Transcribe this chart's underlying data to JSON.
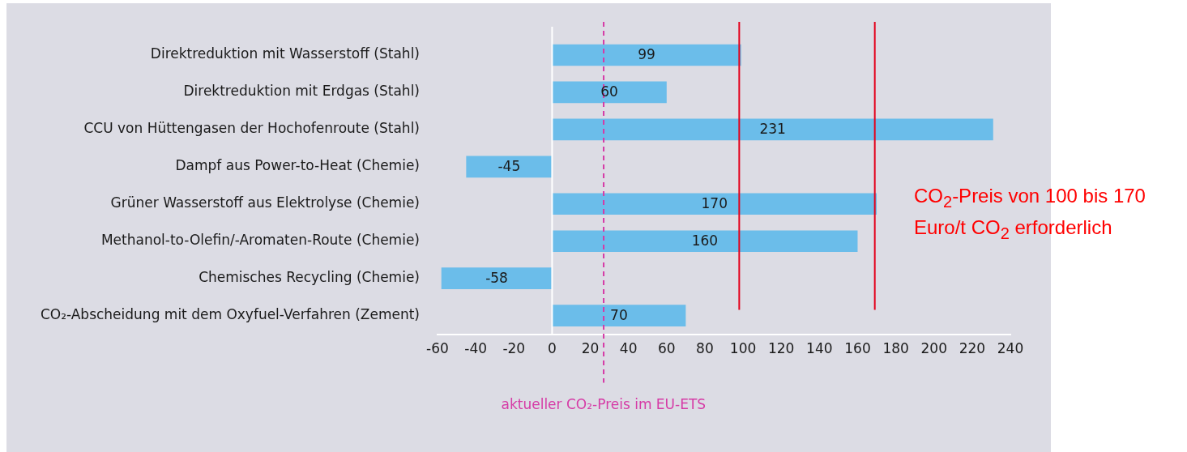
{
  "chart_data": {
    "type": "bar",
    "orientation": "horizontal",
    "categories": [
      "Direktreduktion mit Wasserstoff (Stahl)",
      "Direktreduktion mit Erdgas (Stahl)",
      "CCU von Hüttengasen der Hochofenroute (Stahl)",
      "Dampf aus Power-to-Heat (Chemie)",
      "Grüner Wasserstoff aus Elektrolyse (Chemie)",
      "Methanol-to-Olefin/-Aromaten-Route (Chemie)",
      "Chemisches Recycling (Chemie)",
      "CO₂-Abscheidung mit dem Oxyfuel-Verfahren (Zement)"
    ],
    "values": [
      99,
      60,
      231,
      -45,
      170,
      160,
      -58,
      70
    ],
    "color": "#6bbdea",
    "data_labels": true,
    "xlim": [
      -60,
      240
    ],
    "xticks": [
      -60,
      -40,
      -20,
      0,
      20,
      40,
      60,
      80,
      100,
      120,
      140,
      160,
      180,
      200,
      220,
      240
    ],
    "legend": false,
    "ref_lines": [
      {
        "axis": "x",
        "value": 27,
        "label": "aktueller CO₂-Preis im EU-ETS",
        "color": "#d63ba6",
        "line_style": "dashed"
      },
      {
        "axis": "x",
        "value": 98,
        "label": null,
        "color": "#e3001b",
        "line_style": "solid"
      },
      {
        "axis": "x",
        "value": 169,
        "label": null,
        "color": "#e3001b",
        "line_style": "solid"
      }
    ],
    "annotations": [
      "CO$_{2}$-Preis von 100 bis 170 Euro/t CO$_{2}$ erforderlich"
    ]
  }
}
